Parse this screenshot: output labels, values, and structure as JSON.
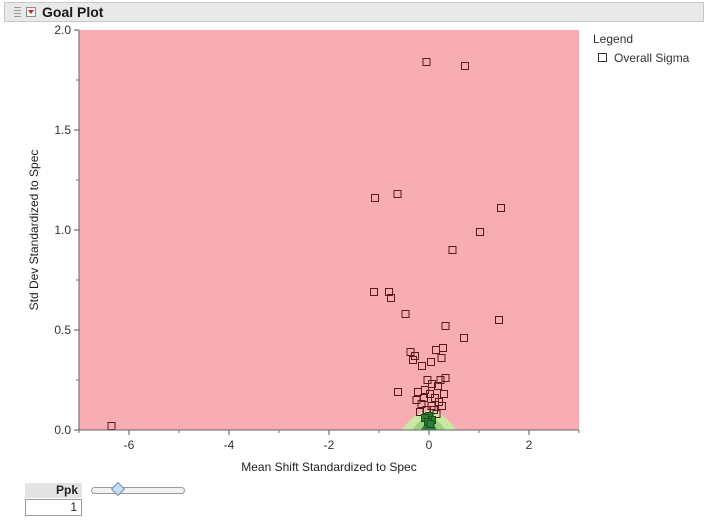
{
  "header": {
    "title": "Goal Plot"
  },
  "legend": {
    "title": "Legend",
    "items": [
      {
        "label": "Overall Sigma",
        "marker": "open-square"
      }
    ]
  },
  "control": {
    "label": "Ppk",
    "value": "1"
  },
  "colors": {
    "zone_red": "#f8adb5",
    "zone_green_outer": "#c9e8a4",
    "zone_green_mid": "#9cd27a",
    "zone_green_inner": "#2e7d32",
    "marker_edge": "#5a1a1a"
  },
  "chart_data": {
    "type": "scatter",
    "xlabel": "Mean Shift Standardized to Spec",
    "ylabel": "Std Dev Standardized to Spec",
    "xlim": [
      -7,
      3
    ],
    "ylim": [
      0,
      2.0
    ],
    "x_ticks": [
      "-6",
      "-4",
      "-2",
      "0",
      "2"
    ],
    "x_tick_values": [
      -6,
      -4,
      -2,
      0,
      2
    ],
    "y_ticks": [
      "0.0",
      "0.5",
      "1.0",
      "1.5",
      "2.0"
    ],
    "y_tick_values": [
      0,
      0.5,
      1.0,
      1.5,
      2.0
    ],
    "series": [
      {
        "name": "Overall Sigma",
        "points": [
          [
            -0.05,
            1.84
          ],
          [
            0.72,
            1.82
          ],
          [
            -0.63,
            1.18
          ],
          [
            -1.08,
            1.16
          ],
          [
            1.44,
            1.11
          ],
          [
            1.02,
            0.99
          ],
          [
            0.47,
            0.9
          ],
          [
            -1.1,
            0.69
          ],
          [
            -0.8,
            0.69
          ],
          [
            -0.76,
            0.66
          ],
          [
            -0.47,
            0.58
          ],
          [
            1.4,
            0.55
          ],
          [
            0.33,
            0.52
          ],
          [
            0.7,
            0.46
          ],
          [
            0.28,
            0.41
          ],
          [
            0.14,
            0.4
          ],
          [
            -0.37,
            0.39
          ],
          [
            -0.28,
            0.37
          ],
          [
            0.25,
            0.36
          ],
          [
            -0.32,
            0.35
          ],
          [
            0.04,
            0.34
          ],
          [
            -0.14,
            0.32
          ],
          [
            0.33,
            0.26
          ],
          [
            0.23,
            0.25
          ],
          [
            -0.03,
            0.25
          ],
          [
            0.06,
            0.23
          ],
          [
            0.18,
            0.22
          ],
          [
            -0.08,
            0.2
          ],
          [
            -0.62,
            0.19
          ],
          [
            -0.22,
            0.19
          ],
          [
            0.02,
            0.18
          ],
          [
            0.3,
            0.18
          ],
          [
            -0.1,
            0.16
          ],
          [
            0.12,
            0.16
          ],
          [
            -0.25,
            0.15
          ],
          [
            0.2,
            0.14
          ],
          [
            -0.15,
            0.13
          ],
          [
            0.05,
            0.12
          ],
          [
            0.26,
            0.12
          ],
          [
            -0.05,
            0.1
          ],
          [
            0.1,
            0.1
          ],
          [
            -0.18,
            0.09
          ],
          [
            0.15,
            0.08
          ],
          [
            0.0,
            0.07
          ],
          [
            -0.08,
            0.06
          ],
          [
            0.06,
            0.05
          ],
          [
            -0.02,
            0.04
          ],
          [
            0.03,
            0.03
          ],
          [
            -6.35,
            0.02
          ]
        ]
      }
    ]
  }
}
